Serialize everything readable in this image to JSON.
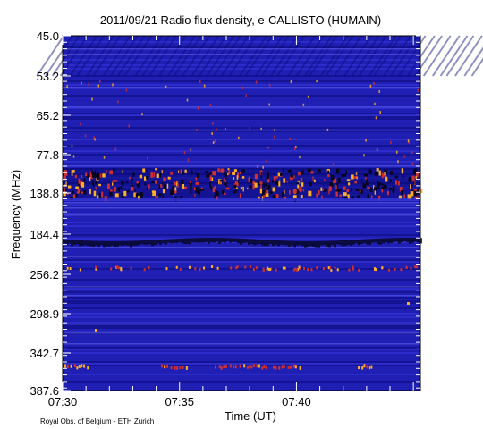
{
  "chart_data": {
    "type": "heatmap",
    "title": "2011/09/21  Radio flux density, e-CALLISTO (HUMAIN)",
    "xlabel": "Time (UT)",
    "ylabel": "Frequency (MHz)",
    "x_ticks": [
      "07:30",
      "07:35",
      "07:40"
    ],
    "x_minor_tick_minutes": 1,
    "x_range_minutes": [
      0,
      15.3
    ],
    "y_ticks": [
      "45.0",
      "53.2",
      "65.2",
      "77.8",
      "138.8",
      "184.4",
      "256.2",
      "298.9",
      "342.7",
      "387.6"
    ],
    "y_direction": "frequency increases downward",
    "colors": {
      "background": "#1f1fb4",
      "low": "#0a0a78",
      "mid": "#3a3ae0",
      "bright": "#7070ff",
      "burst_dark": "#05051e",
      "burst_hot": "#d03030",
      "burst_peak": "#ffb020"
    },
    "features": [
      {
        "band": "138.8",
        "description": "broadband interference band with hot bursts"
      },
      {
        "band": "184.4",
        "description": "dark absorption band"
      },
      {
        "band": "342.7",
        "description": "intermittent bright bursts"
      }
    ]
  },
  "footer": {
    "credit": "Royal Obs. of Belgium - ETH Zurich"
  }
}
